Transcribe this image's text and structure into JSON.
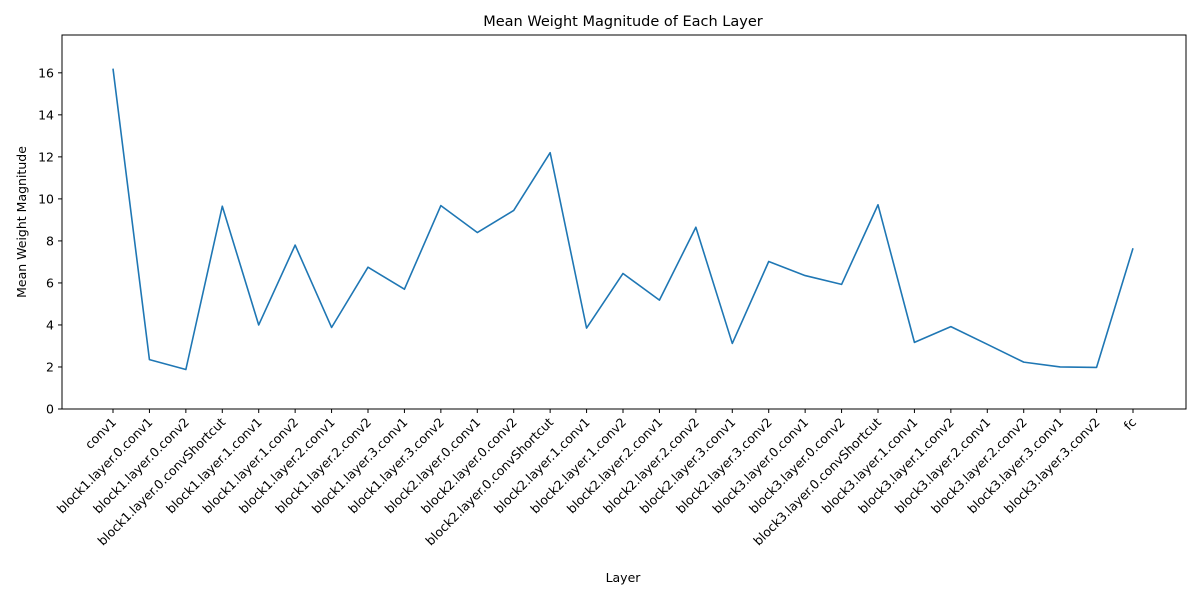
{
  "chart_data": {
    "type": "line",
    "title": "Mean Weight Magnitude of Each Layer",
    "xlabel": "Layer",
    "ylabel": "Mean Weight Magnitude",
    "ylim": [
      0,
      17.8
    ],
    "yticks": [
      0,
      2,
      4,
      6,
      8,
      10,
      12,
      14,
      16
    ],
    "grid": false,
    "legend": null,
    "line_color": "#1f77b4",
    "categories": [
      "conv1",
      "block1.layer.0.conv1",
      "block1.layer.0.conv2",
      "block1.layer.0.convShortcut",
      "block1.layer.1.conv1",
      "block1.layer.1.conv2",
      "block1.layer.2.conv1",
      "block1.layer.2.conv2",
      "block1.layer.3.conv1",
      "block1.layer.3.conv2",
      "block2.layer.0.conv1",
      "block2.layer.0.conv2",
      "block2.layer.0.convShortcut",
      "block2.layer.1.conv1",
      "block2.layer.1.conv2",
      "block2.layer.2.conv1",
      "block2.layer.2.conv2",
      "block2.layer.3.conv1",
      "block2.layer.3.conv2",
      "block3.layer.0.conv1",
      "block3.layer.0.conv2",
      "block3.layer.0.convShortcut",
      "block3.layer.1.conv1",
      "block3.layer.1.conv2",
      "block3.layer.2.conv1",
      "block3.layer.2.conv2",
      "block3.layer.3.conv1",
      "block3.layer.3.conv2",
      "fc"
    ],
    "values": [
      16.2,
      2.35,
      1.88,
      9.65,
      4.0,
      7.8,
      3.88,
      6.75,
      5.7,
      9.68,
      8.4,
      9.45,
      12.2,
      3.85,
      6.45,
      5.18,
      8.65,
      3.12,
      7.02,
      6.35,
      5.93,
      9.72,
      3.17,
      3.92,
      3.08,
      2.23,
      2.0,
      1.98,
      7.65
    ]
  }
}
